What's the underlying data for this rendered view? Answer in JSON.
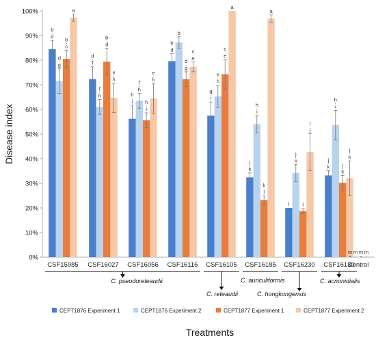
{
  "chart_data": {
    "type": "bar",
    "xlabel": "Treatments",
    "ylabel": "Disease index",
    "ylim": [
      0,
      100
    ],
    "yticks": [
      "0%",
      "10%",
      "20%",
      "30%",
      "40%",
      "50%",
      "60%",
      "70%",
      "80%",
      "90%",
      "100%"
    ],
    "grid": false,
    "legend_position": "bottom",
    "categories": [
      "CSF15985",
      "CSF16027",
      "CSF16056",
      "CSF16116",
      "CSF16105",
      "CSF16185",
      "CSF16230",
      "CSF16130",
      "Control"
    ],
    "series": [
      {
        "name": "CEPT1876 Experiment 1",
        "color": "#4a7fce",
        "values": [
          84.5,
          72.3,
          56.2,
          79.6,
          57.5,
          32.4,
          20.0,
          33.2,
          0.5
        ],
        "errors": [
          3.5,
          5.0,
          5.5,
          3.0,
          5.5,
          1.8,
          0,
          2.0,
          0
        ],
        "letters": [
          [
            "b",
            "d"
          ],
          [
            "d",
            "f"
          ],
          [
            "h",
            "i"
          ],
          [
            "b",
            "d"
          ],
          [
            "g",
            "i"
          ],
          [
            "j",
            "k"
          ],
          [
            "l"
          ],
          [
            "j",
            "k"
          ],
          [
            "m"
          ]
        ]
      },
      {
        "name": "CEPT1876 Experiment 2",
        "color": "#b7d3ee",
        "values": [
          71.5,
          61.0,
          63.5,
          87.2,
          65.3,
          54.0,
          34.2,
          53.6,
          0.5
        ],
        "errors": [
          5.0,
          3.0,
          3.0,
          2.3,
          4.5,
          3.5,
          3.5,
          6.0,
          0
        ],
        "letters": [
          [
            "d",
            "g"
          ],
          [
            "f",
            "h"
          ],
          [
            "f",
            "h"
          ],
          [
            "b"
          ],
          [
            "e",
            "h"
          ],
          [
            "h",
            "i"
          ],
          [
            "j",
            "k"
          ],
          [
            "h",
            "i"
          ],
          [
            "m"
          ]
        ]
      },
      {
        "name": "CEPT1877 Experiment 1",
        "color": "#e87d3e",
        "values": [
          80.5,
          79.4,
          55.6,
          72.3,
          74.3,
          23.2,
          18.7,
          30.2,
          0.5
        ],
        "errors": [
          3.5,
          5.5,
          3.0,
          3.0,
          6.0,
          1.7,
          1.0,
          3.0,
          0
        ],
        "letters": [
          [
            "b",
            "c"
          ],
          [
            "b",
            "d"
          ],
          [
            "h",
            "i"
          ],
          [
            "d",
            "g"
          ],
          [
            "c",
            "e"
          ],
          [
            "k",
            "l"
          ],
          [
            "l"
          ],
          [
            "j",
            "k"
          ],
          [
            "m"
          ]
        ]
      },
      {
        "name": "CEPT1877 Experiment 2",
        "color": "#f6c8a8",
        "values": [
          97.3,
          64.7,
          64.5,
          77.3,
          100,
          96.9,
          42.7,
          32.1,
          0.5
        ],
        "errors": [
          1.5,
          6.0,
          6.0,
          2.0,
          0,
          1.5,
          7.5,
          7.0,
          0
        ],
        "letters": [
          [
            "a"
          ],
          [
            "e",
            "h"
          ],
          [
            "e",
            "h"
          ],
          [
            "c",
            "e"
          ],
          [
            "a"
          ],
          [
            "a"
          ],
          [
            "i",
            "j"
          ],
          [
            "j",
            "k"
          ],
          [
            "m"
          ]
        ]
      }
    ],
    "species_groups": [
      {
        "label": "C. pseudoreteaudii",
        "from": 0,
        "to": 3
      },
      {
        "label": "C. reteaudii",
        "from": 4,
        "to": 4
      },
      {
        "label": "C. auriculiformis",
        "from": 5,
        "to": 5
      },
      {
        "label": "C. hongkongensis",
        "from": 6,
        "to": 6
      },
      {
        "label": "C. acnonidialis",
        "from": 7,
        "to": 7
      }
    ]
  }
}
